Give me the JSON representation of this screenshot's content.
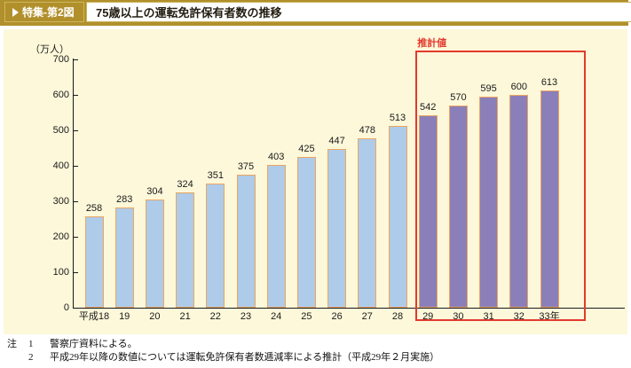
{
  "header": {
    "figure_label": "特集-第2図",
    "title": "75歳以上の運転免許保有者数の推移"
  },
  "chart_data": {
    "type": "bar",
    "title": "75歳以上の運転免許保有者数の推移",
    "unit_label": "（万人）",
    "categories": [
      "平成18",
      "19",
      "20",
      "21",
      "22",
      "23",
      "24",
      "25",
      "26",
      "27",
      "28",
      "29",
      "30",
      "31",
      "32",
      "33年"
    ],
    "values": [
      258,
      283,
      304,
      324,
      351,
      375,
      403,
      425,
      447,
      478,
      513,
      542,
      570,
      595,
      600,
      613
    ],
    "estimated_from_index": 11,
    "estimate_label": "推計値",
    "ylim": [
      0,
      700
    ],
    "ytick_step": 100,
    "grid": false,
    "legend": "none",
    "colors": {
      "actual_fill": "#aecbe9",
      "estimate_fill": "#8b7fba",
      "bar_border": "#eba65f",
      "estimate_box": "#e23a2e",
      "panel_bg": "#fdf8da",
      "banner_gold": "#b1902c"
    }
  },
  "notes": {
    "prefix": "注",
    "items": [
      {
        "num": "1",
        "text": "警察庁資料による。"
      },
      {
        "num": "2",
        "text": "平成29年以降の数値については運転免許保有者数逓減率による推計（平成29年２月実施）"
      }
    ]
  }
}
